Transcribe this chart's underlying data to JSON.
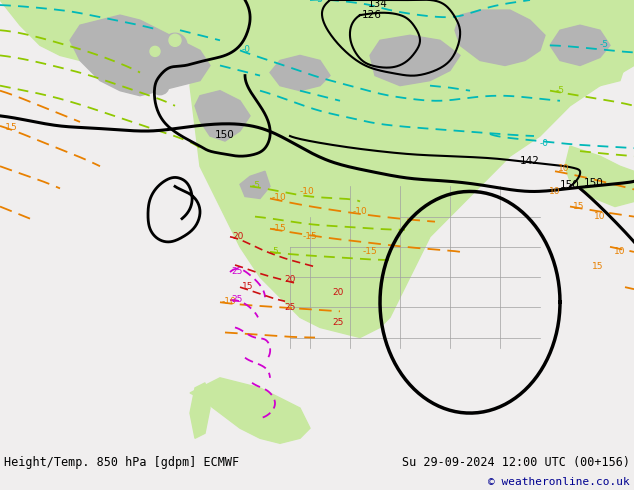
{
  "title_left": "Height/Temp. 850 hPa [gdpm] ECMWF",
  "title_right": "Su 29-09-2024 12:00 UTC (00+156)",
  "copyright": "© weatheronline.co.uk",
  "bg_color": "#f0eeee",
  "font_size_title": 8.5,
  "font_size_copy": 8,
  "land_green": "#c8e8a0",
  "land_gray": "#b4b4b4",
  "c_black": "#000000",
  "c_cyan": "#00b8b8",
  "c_lime": "#90c800",
  "c_orange": "#e88000",
  "c_magenta": "#d000d0",
  "c_red": "#cc1010"
}
